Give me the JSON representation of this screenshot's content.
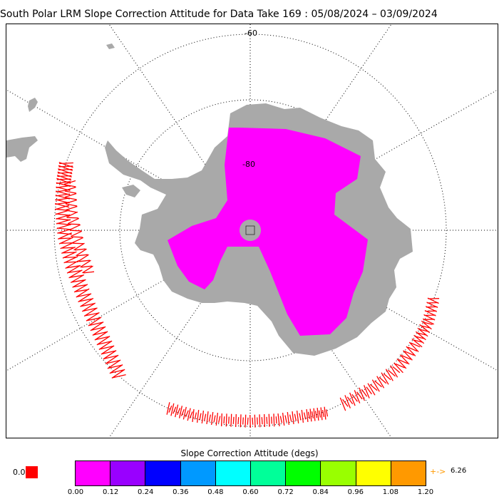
{
  "title": "South Polar LRM Slope Correction Attitude for Data Take 169 : 05/08/2024 – 03/09/2024",
  "map": {
    "lat_labels": [
      "-60",
      "-80"
    ],
    "land_color": "#a9a9a9",
    "track_color": "#ff0000",
    "data_color": "#ff00ff"
  },
  "legend": {
    "title": "Slope Correction Attitude (degs)",
    "colors": [
      "#ff00ff",
      "#9900ff",
      "#0000ff",
      "#0099ff",
      "#00ffff",
      "#00ff99",
      "#00ff00",
      "#99ff00",
      "#ffff00",
      "#ff9900"
    ],
    "ticks": [
      "0.00",
      "0.12",
      "0.24",
      "0.36",
      "0.48",
      "0.60",
      "0.72",
      "0.84",
      "0.96",
      "1.08",
      "1.20"
    ],
    "low_value": "0.0",
    "low_color": "#ff0000",
    "high_arrow": "+->",
    "high_value": "6.26",
    "high_color": "#ff9900"
  }
}
